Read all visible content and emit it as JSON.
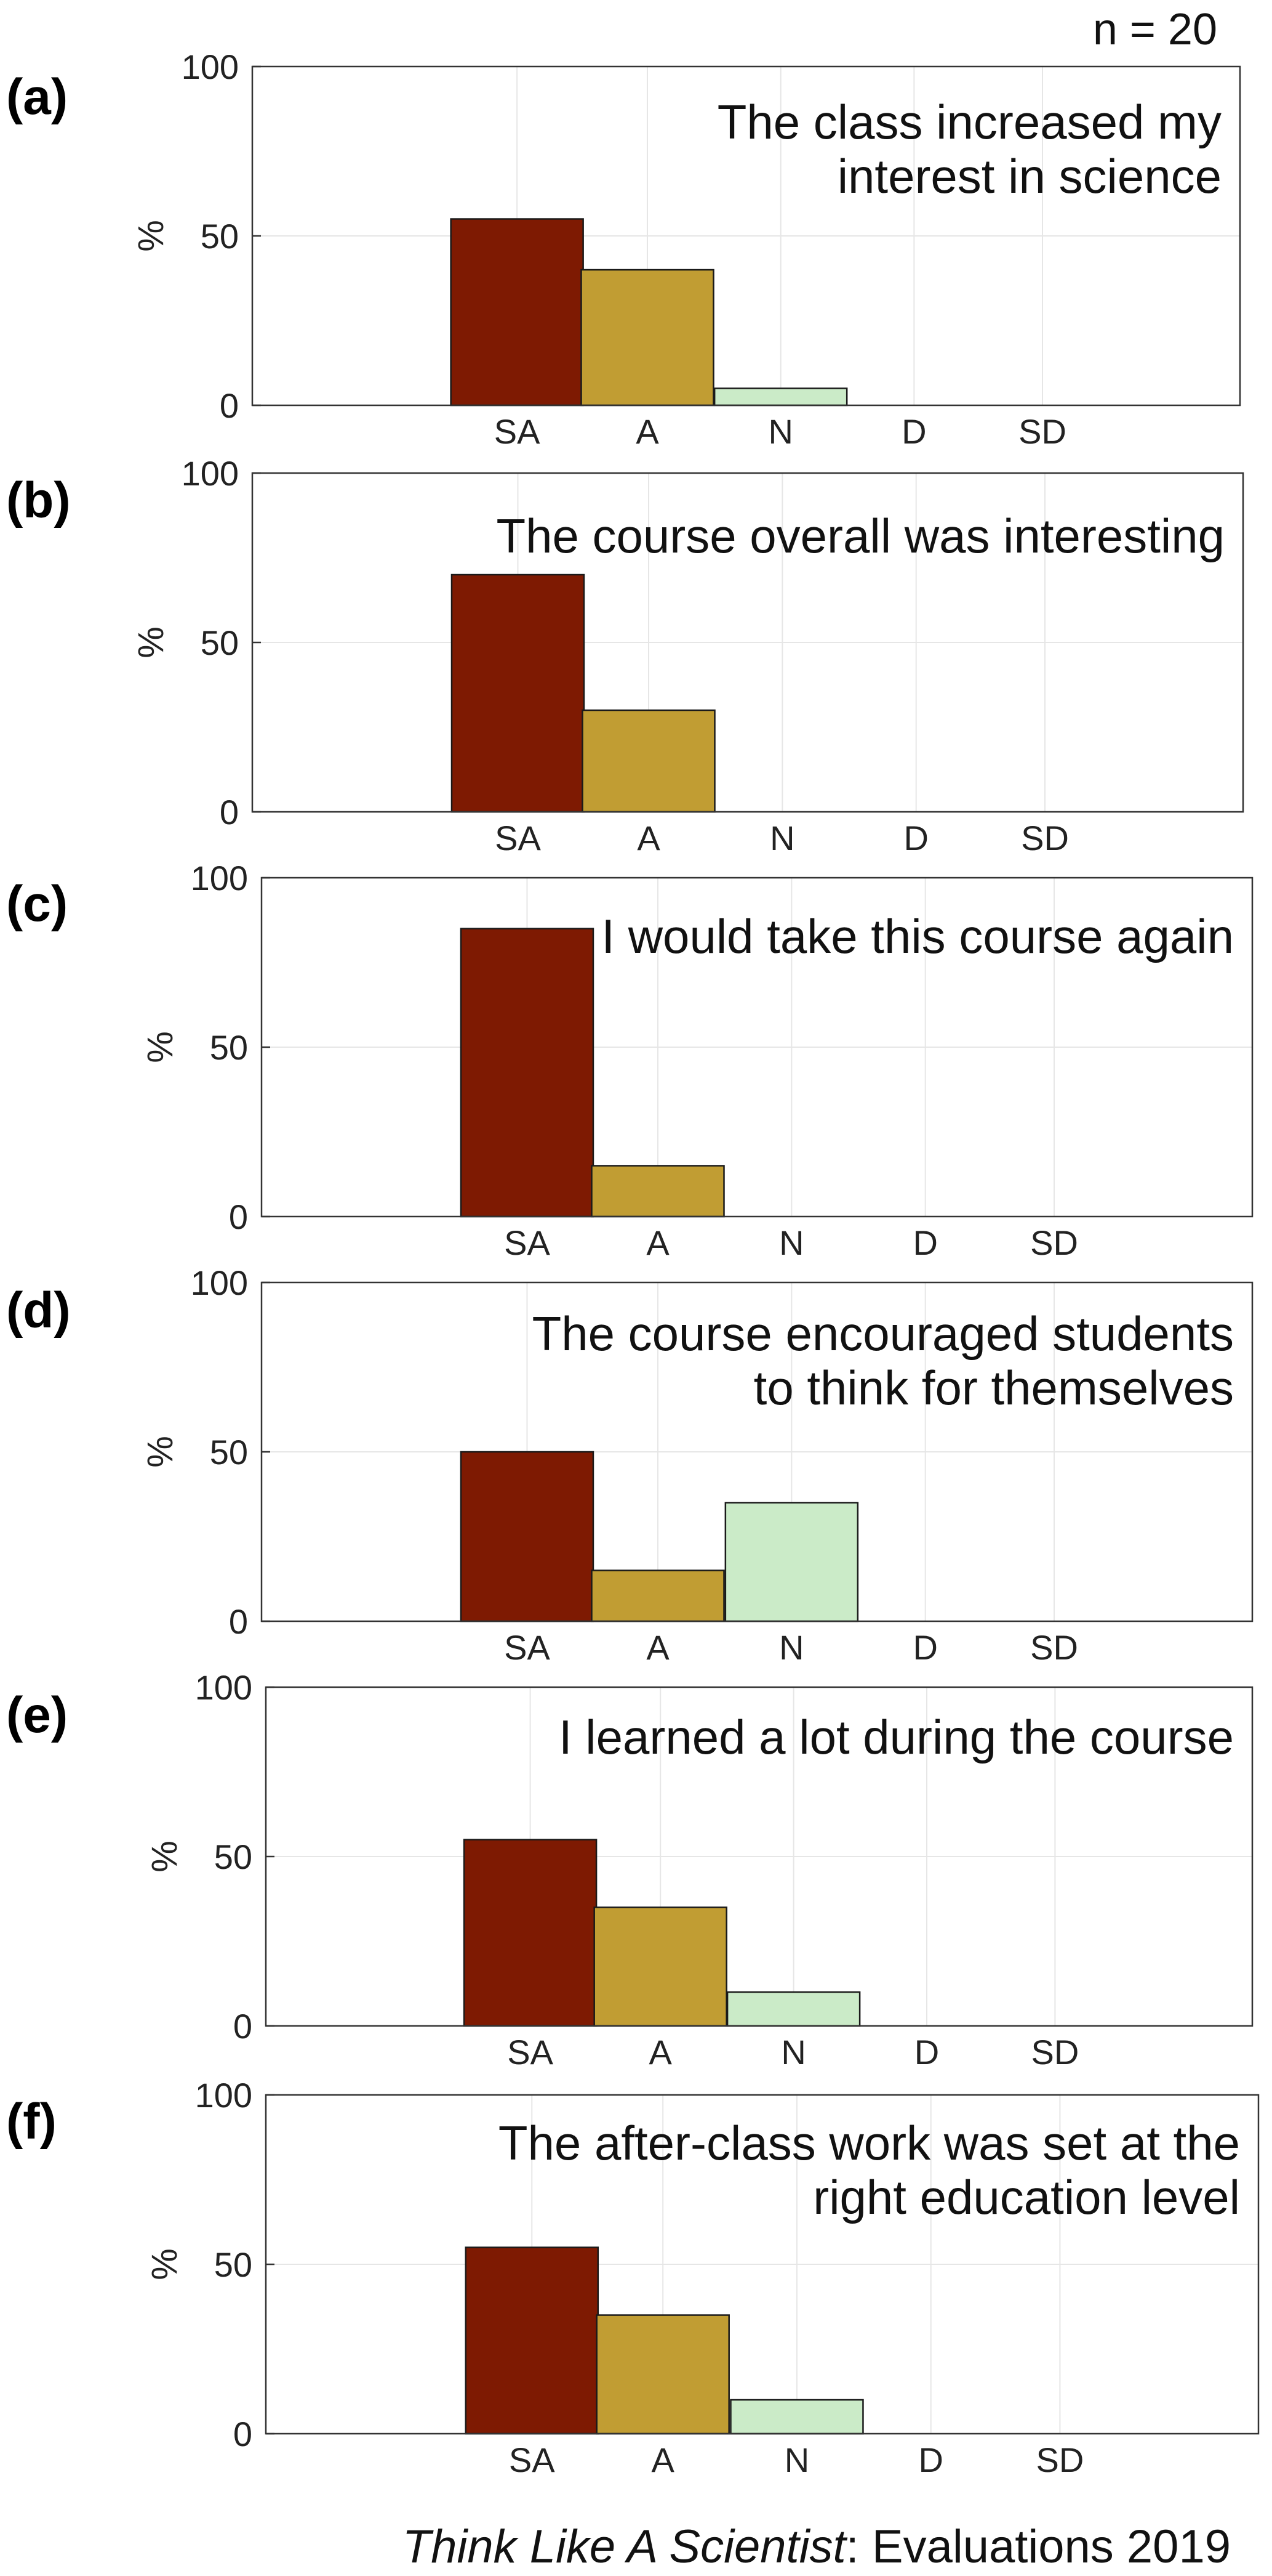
{
  "header": {
    "n_label": "n = 20"
  },
  "footer": {
    "title_italic": "Think Like A Scientist",
    "title_rest": ": Evaluations 2019"
  },
  "ylabel": "%",
  "colors": {
    "SA": "#7e1a02",
    "A": "#c19d33",
    "N": "#cbebc8",
    "grid": "#e6e6e6",
    "axis": "#333333"
  },
  "chart_data": [
    {
      "type": "bar",
      "panel": "(a)",
      "statement": [
        "The class increased my",
        "interest in science"
      ],
      "categories": [
        "SA",
        "A",
        "N",
        "D",
        "SD"
      ],
      "values": [
        55,
        40,
        5,
        0,
        0
      ],
      "ylabel": "%",
      "ylim": [
        0,
        100
      ],
      "yticks": [
        0,
        50,
        100
      ],
      "grid": true
    },
    {
      "type": "bar",
      "panel": "(b)",
      "statement": [
        "The course overall was interesting"
      ],
      "categories": [
        "SA",
        "A",
        "N",
        "D",
        "SD"
      ],
      "values": [
        70,
        30,
        0,
        0,
        0
      ],
      "ylabel": "%",
      "ylim": [
        0,
        100
      ],
      "yticks": [
        0,
        50,
        100
      ],
      "grid": true
    },
    {
      "type": "bar",
      "panel": "(c)",
      "statement": [
        "I would take this course again"
      ],
      "categories": [
        "SA",
        "A",
        "N",
        "D",
        "SD"
      ],
      "values": [
        85,
        15,
        0,
        0,
        0
      ],
      "ylabel": "%",
      "ylim": [
        0,
        100
      ],
      "yticks": [
        0,
        50,
        100
      ],
      "grid": true
    },
    {
      "type": "bar",
      "panel": "(d)",
      "statement": [
        "The course encouraged students",
        "to think for themselves"
      ],
      "categories": [
        "SA",
        "A",
        "N",
        "D",
        "SD"
      ],
      "values": [
        50,
        15,
        35,
        0,
        0
      ],
      "ylabel": "%",
      "ylim": [
        0,
        100
      ],
      "yticks": [
        0,
        50,
        100
      ],
      "grid": true
    },
    {
      "type": "bar",
      "panel": "(e)",
      "statement": [
        "I learned a lot during the course"
      ],
      "categories": [
        "SA",
        "A",
        "N",
        "D",
        "SD"
      ],
      "values": [
        55,
        35,
        10,
        0,
        0
      ],
      "ylabel": "%",
      "ylim": [
        0,
        100
      ],
      "yticks": [
        0,
        50,
        100
      ],
      "grid": true
    },
    {
      "type": "bar",
      "panel": "(f)",
      "statement": [
        "The after-class work was set at the",
        "right education level"
      ],
      "categories": [
        "SA",
        "A",
        "N",
        "D",
        "SD"
      ],
      "values": [
        55,
        35,
        10,
        0,
        0
      ],
      "ylabel": "%",
      "ylim": [
        0,
        100
      ],
      "yticks": [
        0,
        50,
        100
      ],
      "grid": true
    }
  ]
}
